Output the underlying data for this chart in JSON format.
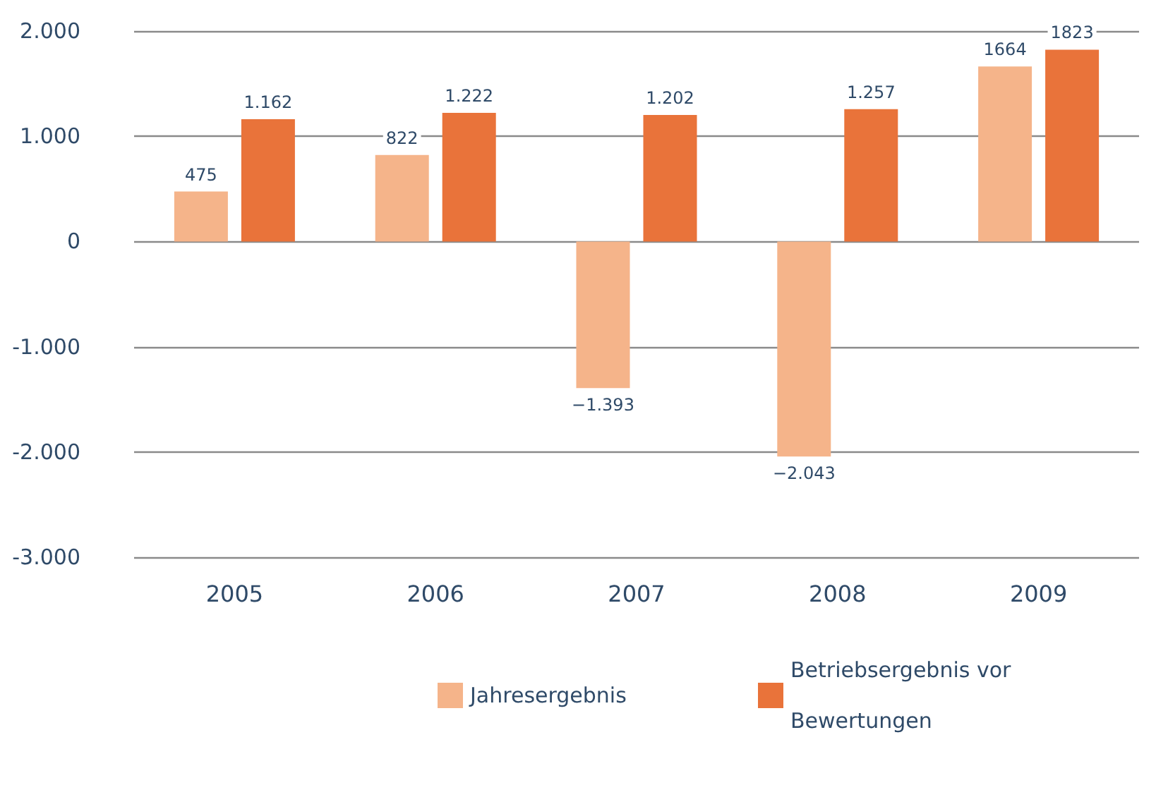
{
  "chart_data": {
    "type": "bar",
    "categories": [
      "2005",
      "2006",
      "2007",
      "2008",
      "2009"
    ],
    "series": [
      {
        "name": "Jahresergebnis",
        "color": "#f5b48a",
        "values": [
          475,
          822,
          -1393,
          -2043,
          1664
        ],
        "value_labels": [
          "475",
          "822",
          "−1.393",
          "−2.043",
          "1664"
        ]
      },
      {
        "name": "Betriebsergebnis vor Bewertungen",
        "color": "#e9733a",
        "values": [
          1162,
          1222,
          1202,
          1257,
          1823
        ],
        "value_labels": [
          "1.162",
          "1.222",
          "1.202",
          "1.257",
          "1823"
        ]
      }
    ],
    "ylim": [
      -3000,
      2000
    ],
    "yticks": [
      {
        "value": -3000,
        "label": "-3.000"
      },
      {
        "value": -2000,
        "label": "-2.000"
      },
      {
        "value": -1000,
        "label": "-1.000"
      },
      {
        "value": 0,
        "label": "0"
      },
      {
        "value": 1000,
        "label": "1.000"
      },
      {
        "value": 2000,
        "label": "2.000"
      }
    ],
    "grid": "y",
    "legend": "bottom"
  }
}
